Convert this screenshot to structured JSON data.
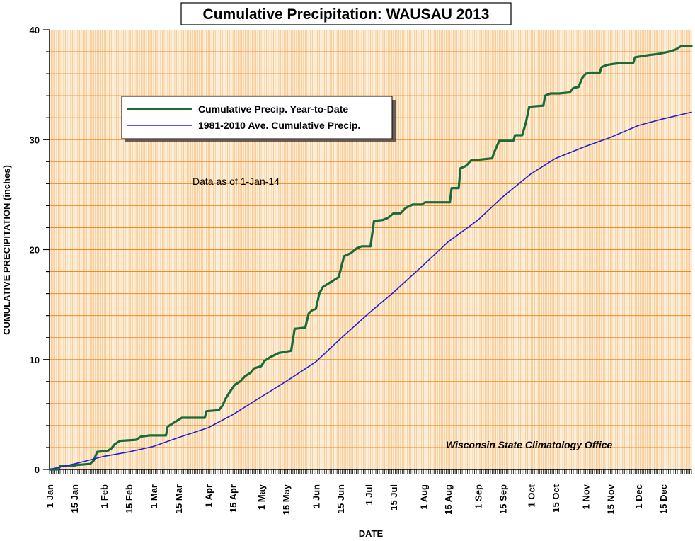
{
  "chart_data": {
    "type": "line",
    "title": "Cumulative Precipitation: WAUSAU 2013",
    "xlabel": "DATE",
    "ylabel": "CUMULATIVE PRECIPITATION (inches)",
    "ylim": [
      0,
      40
    ],
    "y_ticks": [
      "0",
      "10",
      "20",
      "30",
      "40"
    ],
    "x_unit": "day of year",
    "xlim": [
      1,
      365
    ],
    "x_ticks": [
      {
        "label": "1 Jan",
        "day": 1
      },
      {
        "label": "15 Jan",
        "day": 15
      },
      {
        "label": "1 Feb",
        "day": 32
      },
      {
        "label": "15 Feb",
        "day": 46
      },
      {
        "label": "1 Mar",
        "day": 60
      },
      {
        "label": "15 Mar",
        "day": 74
      },
      {
        "label": "1 Apr",
        "day": 91
      },
      {
        "label": "15 Apr",
        "day": 105
      },
      {
        "label": "1 May",
        "day": 121
      },
      {
        "label": "15 May",
        "day": 135
      },
      {
        "label": "1 Jun",
        "day": 152
      },
      {
        "label": "15 Jun",
        "day": 166
      },
      {
        "label": "1 Jul",
        "day": 182
      },
      {
        "label": "15 Jul",
        "day": 196
      },
      {
        "label": "1 Aug",
        "day": 213
      },
      {
        "label": "15 Aug",
        "day": 227
      },
      {
        "label": "1 Sep",
        "day": 244
      },
      {
        "label": "15 Sep",
        "day": 258
      },
      {
        "label": "1 Oct",
        "day": 274
      },
      {
        "label": "15 Oct",
        "day": 288
      },
      {
        "label": "1 Nov",
        "day": 305
      },
      {
        "label": "15 Nov",
        "day": 319
      },
      {
        "label": "1 Dec",
        "day": 335
      },
      {
        "label": "15 Dec",
        "day": 349
      }
    ],
    "grid": true,
    "legend_position": "upper-left",
    "series": [
      {
        "name": "Cumulative Precip. Year-to-Date",
        "color": "#1a6b3a",
        "style": "step",
        "points": [
          [
            1,
            0.0
          ],
          [
            6,
            0.0
          ],
          [
            7,
            0.3
          ],
          [
            15,
            0.3
          ],
          [
            16,
            0.4
          ],
          [
            24,
            0.5
          ],
          [
            26,
            0.8
          ],
          [
            28,
            1.6
          ],
          [
            34,
            1.7
          ],
          [
            36,
            1.9
          ],
          [
            38,
            2.3
          ],
          [
            41,
            2.6
          ],
          [
            50,
            2.7
          ],
          [
            53,
            3.0
          ],
          [
            58,
            3.1
          ],
          [
            67,
            3.1
          ],
          [
            68,
            3.9
          ],
          [
            71,
            4.2
          ],
          [
            74,
            4.5
          ],
          [
            76,
            4.7
          ],
          [
            89,
            4.7
          ],
          [
            90,
            5.3
          ],
          [
            97,
            5.4
          ],
          [
            99,
            5.8
          ],
          [
            101,
            6.5
          ],
          [
            103,
            7.0
          ],
          [
            106,
            7.7
          ],
          [
            109,
            8.0
          ],
          [
            112,
            8.5
          ],
          [
            115,
            8.8
          ],
          [
            117,
            9.2
          ],
          [
            121,
            9.4
          ],
          [
            123,
            9.9
          ],
          [
            126,
            10.2
          ],
          [
            131,
            10.6
          ],
          [
            138,
            10.8
          ],
          [
            140,
            12.8
          ],
          [
            146,
            12.9
          ],
          [
            148,
            14.2
          ],
          [
            150,
            14.5
          ],
          [
            152,
            14.6
          ],
          [
            154,
            16.0
          ],
          [
            156,
            16.6
          ],
          [
            159,
            16.9
          ],
          [
            162,
            17.2
          ],
          [
            165,
            17.5
          ],
          [
            168,
            19.4
          ],
          [
            172,
            19.7
          ],
          [
            175,
            20.1
          ],
          [
            178,
            20.3
          ],
          [
            183,
            20.3
          ],
          [
            185,
            22.6
          ],
          [
            190,
            22.7
          ],
          [
            193,
            22.9
          ],
          [
            196,
            23.3
          ],
          [
            200,
            23.3
          ],
          [
            203,
            23.8
          ],
          [
            207,
            24.1
          ],
          [
            212,
            24.1
          ],
          [
            214,
            24.3
          ],
          [
            228,
            24.3
          ],
          [
            229,
            25.6
          ],
          [
            233,
            25.6
          ],
          [
            234,
            27.4
          ],
          [
            237,
            27.6
          ],
          [
            240,
            28.1
          ],
          [
            246,
            28.2
          ],
          [
            252,
            28.3
          ],
          [
            253,
            28.8
          ],
          [
            256,
            29.9
          ],
          [
            264,
            29.9
          ],
          [
            265,
            30.4
          ],
          [
            269,
            30.4
          ],
          [
            271,
            31.5
          ],
          [
            273,
            33.0
          ],
          [
            281,
            33.1
          ],
          [
            282,
            34.0
          ],
          [
            285,
            34.2
          ],
          [
            290,
            34.2
          ],
          [
            296,
            34.3
          ],
          [
            298,
            34.7
          ],
          [
            301,
            34.8
          ],
          [
            303,
            35.6
          ],
          [
            305,
            36.0
          ],
          [
            308,
            36.1
          ],
          [
            313,
            36.1
          ],
          [
            314,
            36.6
          ],
          [
            317,
            36.8
          ],
          [
            321,
            36.9
          ],
          [
            326,
            37.0
          ],
          [
            332,
            37.0
          ],
          [
            333,
            37.5
          ],
          [
            337,
            37.6
          ],
          [
            341,
            37.7
          ],
          [
            346,
            37.8
          ],
          [
            352,
            38.0
          ],
          [
            356,
            38.2
          ],
          [
            359,
            38.5
          ],
          [
            365,
            38.5
          ]
        ]
      },
      {
        "name": "1981-2010 Ave. Cumulative Precip.",
        "color": "#1f1fd6",
        "style": "line",
        "points": [
          [
            1,
            0.0
          ],
          [
            15,
            0.5
          ],
          [
            32,
            1.2
          ],
          [
            46,
            1.6
          ],
          [
            60,
            2.1
          ],
          [
            74,
            2.9
          ],
          [
            91,
            3.8
          ],
          [
            105,
            5.0
          ],
          [
            121,
            6.6
          ],
          [
            135,
            8.0
          ],
          [
            152,
            9.8
          ],
          [
            166,
            11.9
          ],
          [
            182,
            14.2
          ],
          [
            196,
            16.1
          ],
          [
            213,
            18.6
          ],
          [
            227,
            20.7
          ],
          [
            244,
            22.7
          ],
          [
            258,
            24.8
          ],
          [
            274,
            26.9
          ],
          [
            288,
            28.3
          ],
          [
            305,
            29.4
          ],
          [
            319,
            30.2
          ],
          [
            335,
            31.3
          ],
          [
            349,
            31.9
          ],
          [
            365,
            32.5
          ]
        ]
      }
    ],
    "annotations": {
      "data_note": "Data as of 1-Jan-14",
      "credit": "Wisconsin State Climatology Office"
    }
  }
}
